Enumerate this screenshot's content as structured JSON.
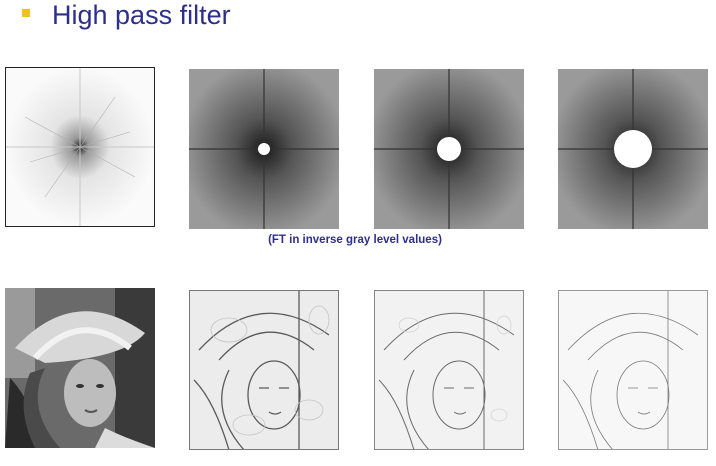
{
  "slide": {
    "title": "High pass filter",
    "caption": "(FT in inverse gray level values)"
  },
  "colors": {
    "bullet": "#f0c020",
    "title": "#2e2e8c"
  }
}
